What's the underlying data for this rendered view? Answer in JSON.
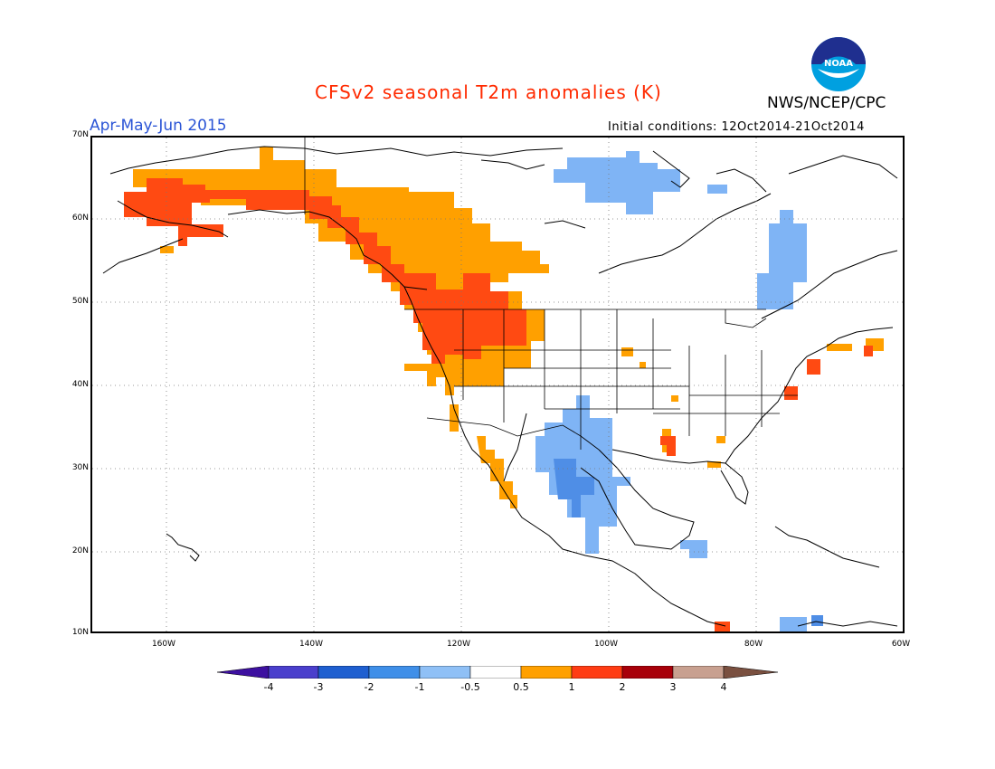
{
  "header": {
    "title": "CFSv2 seasonal T2m anomalies (K)",
    "agency": "NWS/NCEP/CPC",
    "season": "Apr-May-Jun 2015",
    "initial_conditions": "Initial conditions: 12Oct2014-21Oct2014",
    "logo_text": "NOAA"
  },
  "colors": {
    "title": "#ff2a00",
    "season": "#2b55d6",
    "lt_blue": "#7fb4f5",
    "mid_blue": "#4f8ee6",
    "orange": "#ffa000",
    "red_orange": "#ff4a12"
  },
  "axes": {
    "lat_labels": [
      "70N",
      "60N",
      "50N",
      "40N",
      "30N",
      "20N",
      "10N"
    ],
    "lon_labels": [
      "160W",
      "140W",
      "120W",
      "100W",
      "80W",
      "60W"
    ]
  },
  "colorbar": {
    "labels": [
      "-4",
      "-3",
      "-2",
      "-1",
      "-0.5",
      "0.5",
      "1",
      "2",
      "3",
      "4"
    ],
    "colors": [
      "#3d10a0",
      "#4a3fcc",
      "#1e5fd0",
      "#3f8fe8",
      "#8fc0f6",
      "#ffffff",
      "#ffa000",
      "#ff3c14",
      "#a8000a",
      "#c8a090",
      "#7a5040"
    ]
  }
}
